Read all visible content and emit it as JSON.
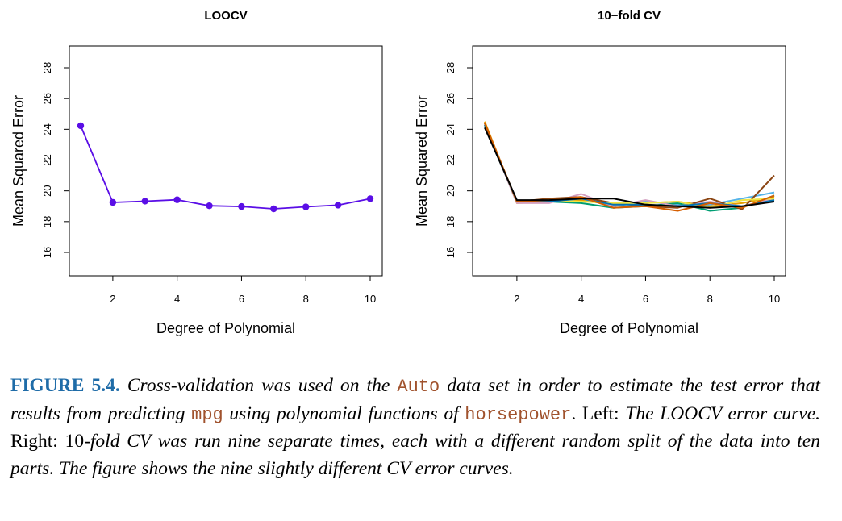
{
  "chart_data": [
    {
      "type": "line",
      "title": "LOOCV",
      "xlabel": "Degree of Polynomial",
      "ylabel": "Mean Squared Error",
      "xlim": [
        1,
        10
      ],
      "ylim": [
        16,
        28
      ],
      "xticks": [
        2,
        4,
        6,
        8,
        10
      ],
      "yticks": [
        16,
        18,
        20,
        22,
        24,
        26,
        28
      ],
      "grid": false,
      "markers": true,
      "x": [
        1,
        2,
        3,
        4,
        5,
        6,
        7,
        8,
        9,
        10
      ],
      "series": [
        {
          "color": "#5a0ee6",
          "values": [
            24.23,
            19.25,
            19.33,
            19.42,
            19.03,
            18.98,
            18.83,
            18.96,
            19.07,
            19.49
          ]
        }
      ]
    },
    {
      "type": "line",
      "title": "10−fold CV",
      "xlabel": "Degree of Polynomial",
      "ylabel": "Mean Squared Error",
      "xlim": [
        1,
        10
      ],
      "ylim": [
        16,
        28
      ],
      "xticks": [
        2,
        4,
        6,
        8,
        10
      ],
      "yticks": [
        16,
        18,
        20,
        22,
        24,
        26,
        28
      ],
      "grid": false,
      "markers": false,
      "x": [
        1,
        2,
        3,
        4,
        5,
        6,
        7,
        8,
        9,
        10
      ],
      "series": [
        {
          "color": "#e69f00",
          "values": [
            24.5,
            19.2,
            19.3,
            19.4,
            19.1,
            19.2,
            19.3,
            19.0,
            19.2,
            19.6
          ]
        },
        {
          "color": "#56b4e9",
          "values": [
            24.3,
            19.3,
            19.3,
            19.5,
            19.0,
            19.3,
            19.1,
            19.1,
            19.5,
            19.9
          ]
        },
        {
          "color": "#009e73",
          "values": [
            24.2,
            19.3,
            19.3,
            19.2,
            18.9,
            19.0,
            19.2,
            18.7,
            18.9,
            19.7
          ]
        },
        {
          "color": "#d4a0c0",
          "values": [
            24.3,
            19.2,
            19.2,
            19.8,
            19.0,
            19.4,
            19.0,
            19.3,
            19.0,
            19.5
          ]
        },
        {
          "color": "#8b4513",
          "values": [
            24.4,
            19.3,
            19.5,
            19.6,
            19.2,
            19.0,
            18.9,
            19.5,
            18.8,
            21.0
          ]
        },
        {
          "color": "#f0e442",
          "values": [
            24.3,
            19.3,
            19.4,
            19.3,
            19.2,
            19.2,
            19.3,
            18.9,
            19.4,
            19.5
          ]
        },
        {
          "color": "#0072b2",
          "values": [
            24.3,
            19.3,
            19.3,
            19.5,
            19.1,
            19.1,
            19.0,
            19.2,
            19.0,
            19.4
          ]
        },
        {
          "color": "#d55e00",
          "values": [
            24.4,
            19.3,
            19.4,
            19.6,
            18.9,
            19.0,
            18.7,
            19.2,
            18.9,
            19.7
          ]
        },
        {
          "color": "#000000",
          "values": [
            24.1,
            19.4,
            19.4,
            19.5,
            19.5,
            19.1,
            19.0,
            18.9,
            19.0,
            19.3
          ]
        }
      ]
    }
  ],
  "caption": {
    "label": "FIGURE 5.4.",
    "t1": " Cross-validation was used on the ",
    "code1": "Auto",
    "t2": " data set in order to estimate the test error that results from predicting ",
    "code2": "mpg",
    "t3": " using polynomial functions of ",
    "code3": "horsepower",
    "t4": ". Left: ",
    "t5": "The LOOCV error curve.",
    "t6": " Right: 10-",
    "t7": "fold CV was run nine separate times, each with a different random split of the data into ten parts. The figure shows the nine slightly different CV error curves."
  }
}
